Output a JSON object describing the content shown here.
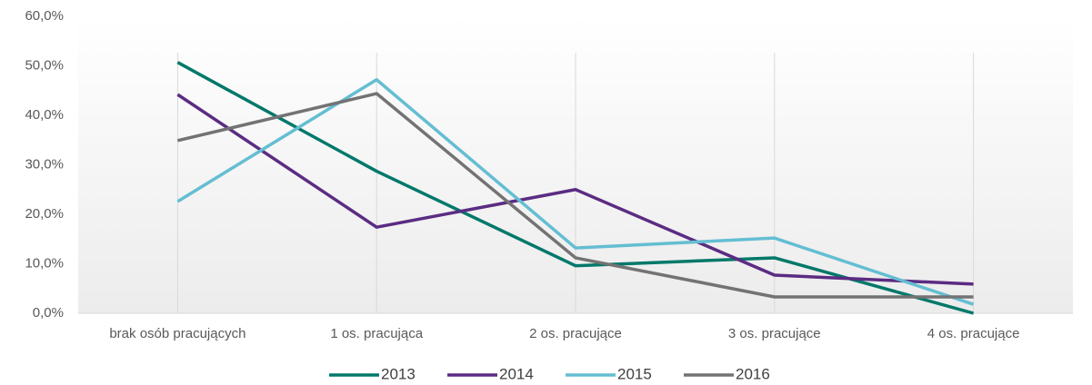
{
  "chart_data": {
    "type": "line",
    "categories": [
      "brak osób pracujących",
      "1 os. pracująca",
      "2 os. pracujące",
      "3 os. pracujące",
      "4 os. pracujące"
    ],
    "series": [
      {
        "name": "2013",
        "color": "#00786a",
        "values": [
          50.7,
          28.7,
          9.6,
          11.2,
          0.0
        ]
      },
      {
        "name": "2014",
        "color": "#5b2c83",
        "values": [
          44.2,
          17.4,
          25.0,
          7.7,
          5.9
        ]
      },
      {
        "name": "2015",
        "color": "#64bed2",
        "values": [
          22.6,
          47.2,
          13.2,
          15.2,
          1.8
        ]
      },
      {
        "name": "2016",
        "color": "#737373",
        "values": [
          34.9,
          44.4,
          11.2,
          3.3,
          3.3
        ]
      }
    ],
    "ylim": [
      0,
      60
    ],
    "yticks": [
      {
        "value": 0,
        "label": "0,0%"
      },
      {
        "value": 10,
        "label": "10,0%"
      },
      {
        "value": 20,
        "label": "20,0%"
      },
      {
        "value": 30,
        "label": "30,0%"
      },
      {
        "value": 40,
        "label": "40,0%"
      },
      {
        "value": 50,
        "label": "50,0%"
      },
      {
        "value": 60,
        "label": "60,0%"
      }
    ],
    "grid": false
  }
}
